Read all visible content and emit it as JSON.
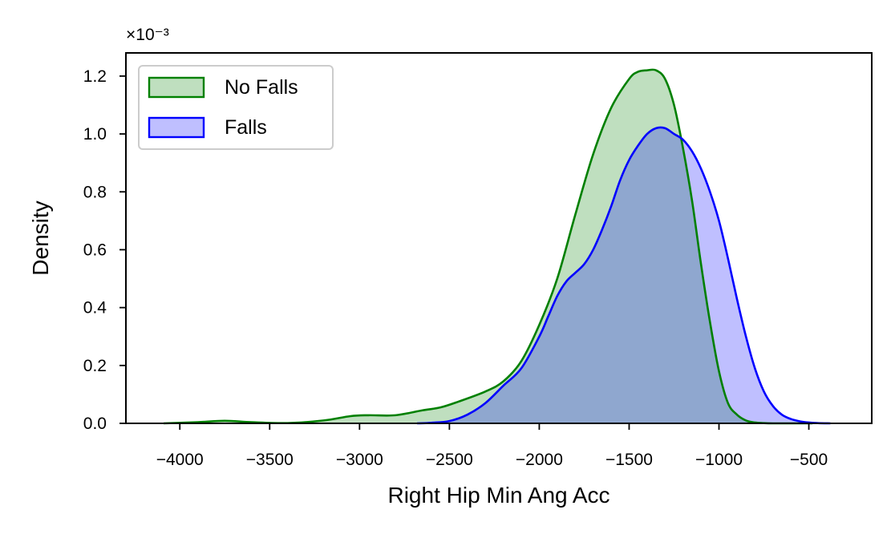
{
  "chart_data": {
    "type": "area",
    "xlabel": "Right Hip Min Ang Acc",
    "ylabel": "Density",
    "scale_multiplier": "×10⁻³",
    "xlim": [
      -4300,
      -150
    ],
    "ylim": [
      0,
      1.28
    ],
    "x_ticks": [
      -4000,
      -3500,
      -3000,
      -2500,
      -2000,
      -1500,
      -1000,
      -500
    ],
    "x_tick_labels": [
      "−4000",
      "−3500",
      "−3000",
      "−2500",
      "−2000",
      "−1500",
      "−1000",
      "−500"
    ],
    "y_ticks": [
      0.0,
      0.2,
      0.4,
      0.6,
      0.8,
      1.0,
      1.2
    ],
    "y_tick_labels": [
      "0.0",
      "0.2",
      "0.4",
      "0.6",
      "0.8",
      "1.0",
      "1.2"
    ],
    "grid": false,
    "legend_position": "top-left",
    "series": [
      {
        "name": "No Falls",
        "color": "#008000",
        "fill": "#c1dfc1",
        "x": [
          -4090,
          -3900,
          -3750,
          -3600,
          -3400,
          -3200,
          -3050,
          -2950,
          -2800,
          -2650,
          -2550,
          -2450,
          -2300,
          -2200,
          -2100,
          -2000,
          -1900,
          -1800,
          -1700,
          -1600,
          -1500,
          -1450,
          -1400,
          -1350,
          -1300,
          -1250,
          -1200,
          -1150,
          -1100,
          -1050,
          -1000,
          -950,
          -900,
          -850,
          -800,
          -750,
          -700,
          -650,
          -600,
          -550,
          -480
        ],
        "y": [
          0.0,
          0.004,
          0.009,
          0.004,
          0.001,
          0.01,
          0.025,
          0.028,
          0.028,
          0.045,
          0.055,
          0.075,
          0.11,
          0.145,
          0.215,
          0.34,
          0.5,
          0.72,
          0.93,
          1.09,
          1.19,
          1.215,
          1.22,
          1.22,
          1.19,
          1.1,
          0.95,
          0.77,
          0.55,
          0.35,
          0.18,
          0.07,
          0.03,
          0.01,
          0.003,
          0.001,
          0.0,
          0.0,
          0.0,
          0.0,
          0.0
        ]
      },
      {
        "name": "Falls",
        "color": "#0000ff",
        "fill": "#bbbbff",
        "x": [
          -2680,
          -2600,
          -2500,
          -2400,
          -2300,
          -2200,
          -2100,
          -2000,
          -1950,
          -1900,
          -1850,
          -1800,
          -1750,
          -1700,
          -1650,
          -1600,
          -1550,
          -1500,
          -1450,
          -1400,
          -1350,
          -1300,
          -1250,
          -1200,
          -1150,
          -1100,
          -1050,
          -1000,
          -950,
          -900,
          -850,
          -800,
          -750,
          -700,
          -650,
          -600,
          -550,
          -500,
          -450,
          -380
        ],
        "y": [
          0.0,
          0.002,
          0.008,
          0.03,
          0.07,
          0.13,
          0.19,
          0.3,
          0.37,
          0.44,
          0.49,
          0.52,
          0.55,
          0.6,
          0.67,
          0.75,
          0.84,
          0.91,
          0.96,
          1.0,
          1.02,
          1.02,
          1.0,
          0.98,
          0.94,
          0.88,
          0.8,
          0.7,
          0.57,
          0.43,
          0.3,
          0.19,
          0.11,
          0.06,
          0.03,
          0.015,
          0.007,
          0.003,
          0.001,
          0.0
        ]
      }
    ]
  }
}
